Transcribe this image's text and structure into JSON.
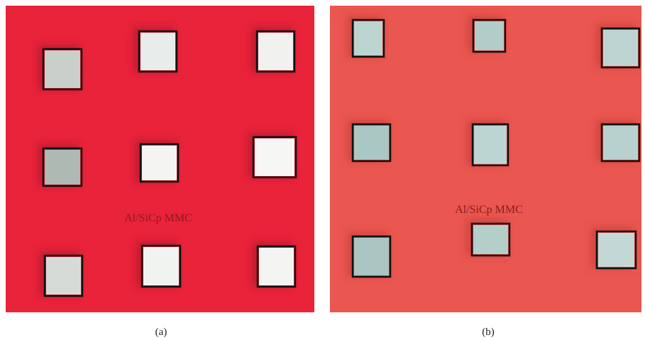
{
  "panels": [
    {
      "annotation": "Al/SiCp MMC",
      "label": "(a)"
    },
    {
      "annotation": "Al/SiCp MMC",
      "label": "(b)"
    }
  ]
}
